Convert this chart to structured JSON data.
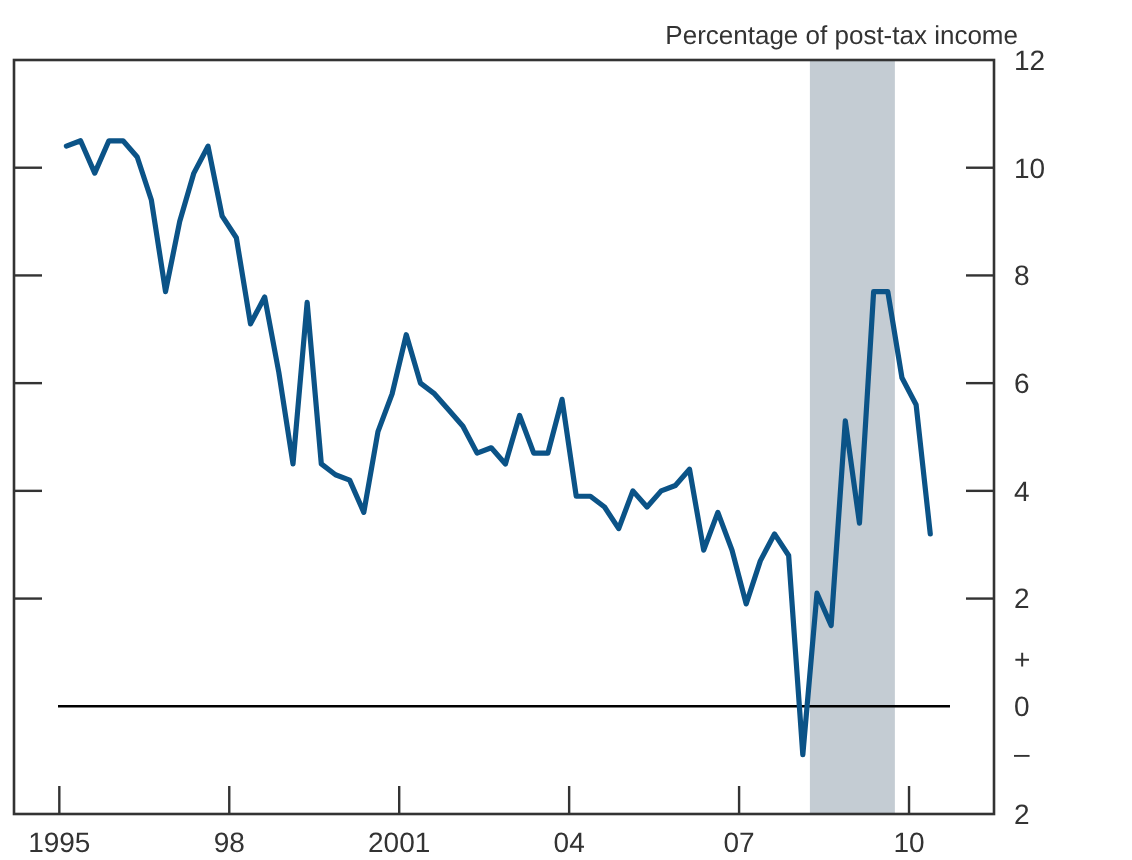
{
  "chart_data": {
    "type": "line",
    "ylabel": "Percentage of post-tax income",
    "x": [
      1995.125,
      1995.375,
      1995.625,
      1995.875,
      1996.125,
      1996.375,
      1996.625,
      1996.875,
      1997.125,
      1997.375,
      1997.625,
      1997.875,
      1998.125,
      1998.375,
      1998.625,
      1998.875,
      1999.125,
      1999.375,
      1999.625,
      1999.875,
      2000.125,
      2000.375,
      2000.625,
      2000.875,
      2001.125,
      2001.375,
      2001.625,
      2001.875,
      2002.125,
      2002.375,
      2002.625,
      2002.875,
      2003.125,
      2003.375,
      2003.625,
      2003.875,
      2004.125,
      2004.375,
      2004.625,
      2004.875,
      2005.125,
      2005.375,
      2005.625,
      2005.875,
      2006.125,
      2006.375,
      2006.625,
      2006.875,
      2007.125,
      2007.375,
      2007.625,
      2007.875,
      2008.125,
      2008.375,
      2008.625,
      2008.875,
      2009.125,
      2009.375,
      2009.625,
      2009.875,
      2010.125,
      2010.375
    ],
    "series": [
      {
        "color": "#0b5387",
        "values": [
          10.4,
          10.5,
          9.9,
          10.5,
          10.5,
          10.2,
          9.4,
          7.7,
          9.0,
          9.9,
          10.4,
          9.1,
          8.7,
          7.1,
          7.6,
          6.2,
          4.5,
          7.5,
          4.5,
          4.3,
          4.2,
          3.6,
          5.1,
          5.8,
          6.9,
          6.0,
          5.8,
          5.5,
          5.2,
          4.7,
          4.8,
          4.5,
          5.4,
          4.7,
          4.7,
          5.7,
          3.9,
          3.9,
          3.7,
          3.3,
          4.0,
          3.7,
          4.0,
          4.1,
          4.4,
          2.9,
          3.6,
          2.9,
          1.9,
          2.7,
          3.2,
          2.8,
          -0.9,
          2.1,
          1.5,
          5.3,
          3.4,
          7.7,
          7.7,
          6.1,
          5.6,
          3.2
        ]
      }
    ],
    "xlim": [
      1994.2,
      2011.5
    ],
    "xticks": [
      {
        "value": 1995,
        "label": "1995"
      },
      {
        "value": 1998,
        "label": "98"
      },
      {
        "value": 2001,
        "label": "2001"
      },
      {
        "value": 2004,
        "label": "04"
      },
      {
        "value": 2007,
        "label": "07"
      },
      {
        "value": 2010,
        "label": "10"
      }
    ],
    "ylim": [
      -2,
      12
    ],
    "yticks": [
      {
        "value": -2,
        "label": "2"
      },
      0,
      2,
      4,
      6,
      8,
      10,
      12
    ],
    "ref_lines": [
      {
        "axis": "y",
        "value": 0,
        "color": "#000000"
      }
    ],
    "bands": [
      {
        "axis": "x",
        "from": 2008.25,
        "to": 2009.75,
        "color": "#c4ccd3"
      }
    ],
    "annotations": [
      "+",
      "–"
    ],
    "grid": false,
    "line_style": "solid",
    "marker": "none"
  }
}
